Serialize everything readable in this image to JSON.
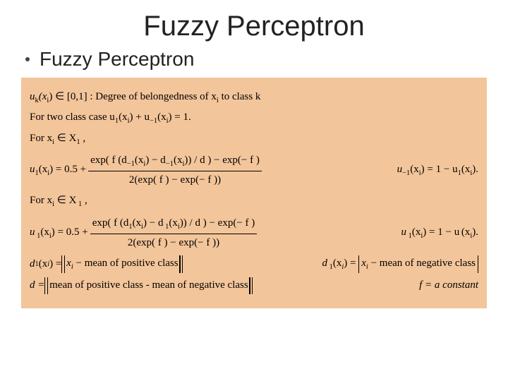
{
  "title": "Fuzzy Perceptron",
  "bullet": "Fuzzy Perceptron",
  "box": {
    "bg_color": "#f3c59a",
    "line1_a": "u",
    "line1_sub1": "k",
    "line1_b": "(x",
    "line1_sub2": "i",
    "line1_c": ") ∈ [0,1] : Degree of belongedness of x",
    "line1_sub3": "i",
    "line1_d": " to class k",
    "line2_a": "For two class case  u",
    "line2_sub1": "1",
    "line2_b": "(x",
    "line2_sub2": "i",
    "line2_c": ") + u",
    "line2_sub3": "−1",
    "line2_d": "(x",
    "line2_sub4": "i",
    "line2_e": ") = 1.",
    "line3_a": "For x",
    "line3_sub1": "i",
    "line3_b": " ∈ X",
    "line3_sub2": "1",
    "line3_c": " ,",
    "eq1_left_a": "u",
    "eq1_left_sub": "1",
    "eq1_left_b": "(x",
    "eq1_left_sub2": "i",
    "eq1_left_c": ") = 0.5 + ",
    "eq1_num": "exp( f (d",
    "eq1_num_sub1": "−1",
    "eq1_num_b": "(x",
    "eq1_num_sub2": "i",
    "eq1_num_c": ") − d",
    "eq1_num_sub3": "−1",
    "eq1_num_d": "(x",
    "eq1_num_sub4": "i",
    "eq1_num_e": ")) / d ) − exp(− f )",
    "eq1_den": "2(exp( f ) − exp(− f ))",
    "eq1_right_a": "u",
    "eq1_right_sub1": "−1",
    "eq1_right_b": "(x",
    "eq1_right_sub2": "i",
    "eq1_right_c": ") = 1 − u",
    "eq1_right_sub3": "1",
    "eq1_right_d": "(x",
    "eq1_right_sub4": "i",
    "eq1_right_e": ").",
    "line4_a": "For x",
    "line4_sub1": "i",
    "line4_b": " ∈ X",
    "line4_sub2": " 1",
    "line4_c": " ,",
    "eq2_left_a": "u",
    "eq2_left_sub": " 1",
    "eq2_left_b": "(x",
    "eq2_left_sub2": "i",
    "eq2_left_c": ") = 0.5 + ",
    "eq2_num": "exp( f (d",
    "eq2_num_sub1": "1",
    "eq2_num_b": "(x",
    "eq2_num_sub2": "i",
    "eq2_num_c": ") − d",
    "eq2_num_sub3": " 1",
    "eq2_num_d": "(x",
    "eq2_num_sub4": "i",
    "eq2_num_e": ")) / d ) − exp(− f )",
    "eq2_den": "2(exp( f ) − exp(− f ))",
    "eq2_right_a": "u",
    "eq2_right_sub1": " 1",
    "eq2_right_b": "(x",
    "eq2_right_sub2": "i",
    "eq2_right_c": ") = 1 − u",
    "eq2_right_sub3": " ",
    "eq2_right_d": "(x",
    "eq2_right_sub4": "i",
    "eq2_right_e": ").",
    "d1_a": "d",
    "d1_sub": "1",
    "d1_b": "(x",
    "d1_sub2": "i",
    "d1_c": ") = ",
    "d1_norm": "x_i − mean of positive class",
    "d1_ra": "d",
    "d1_rsub": " 1",
    "d1_rb": "(x",
    "d1_rsub2": "i",
    "d1_rc": ") = ",
    "d1_abs": "x_i − mean of negative class",
    "d_line_a": "d = ",
    "d_line_norm": "mean of positive class - mean of negative class",
    "f_const": "f = a constant"
  }
}
